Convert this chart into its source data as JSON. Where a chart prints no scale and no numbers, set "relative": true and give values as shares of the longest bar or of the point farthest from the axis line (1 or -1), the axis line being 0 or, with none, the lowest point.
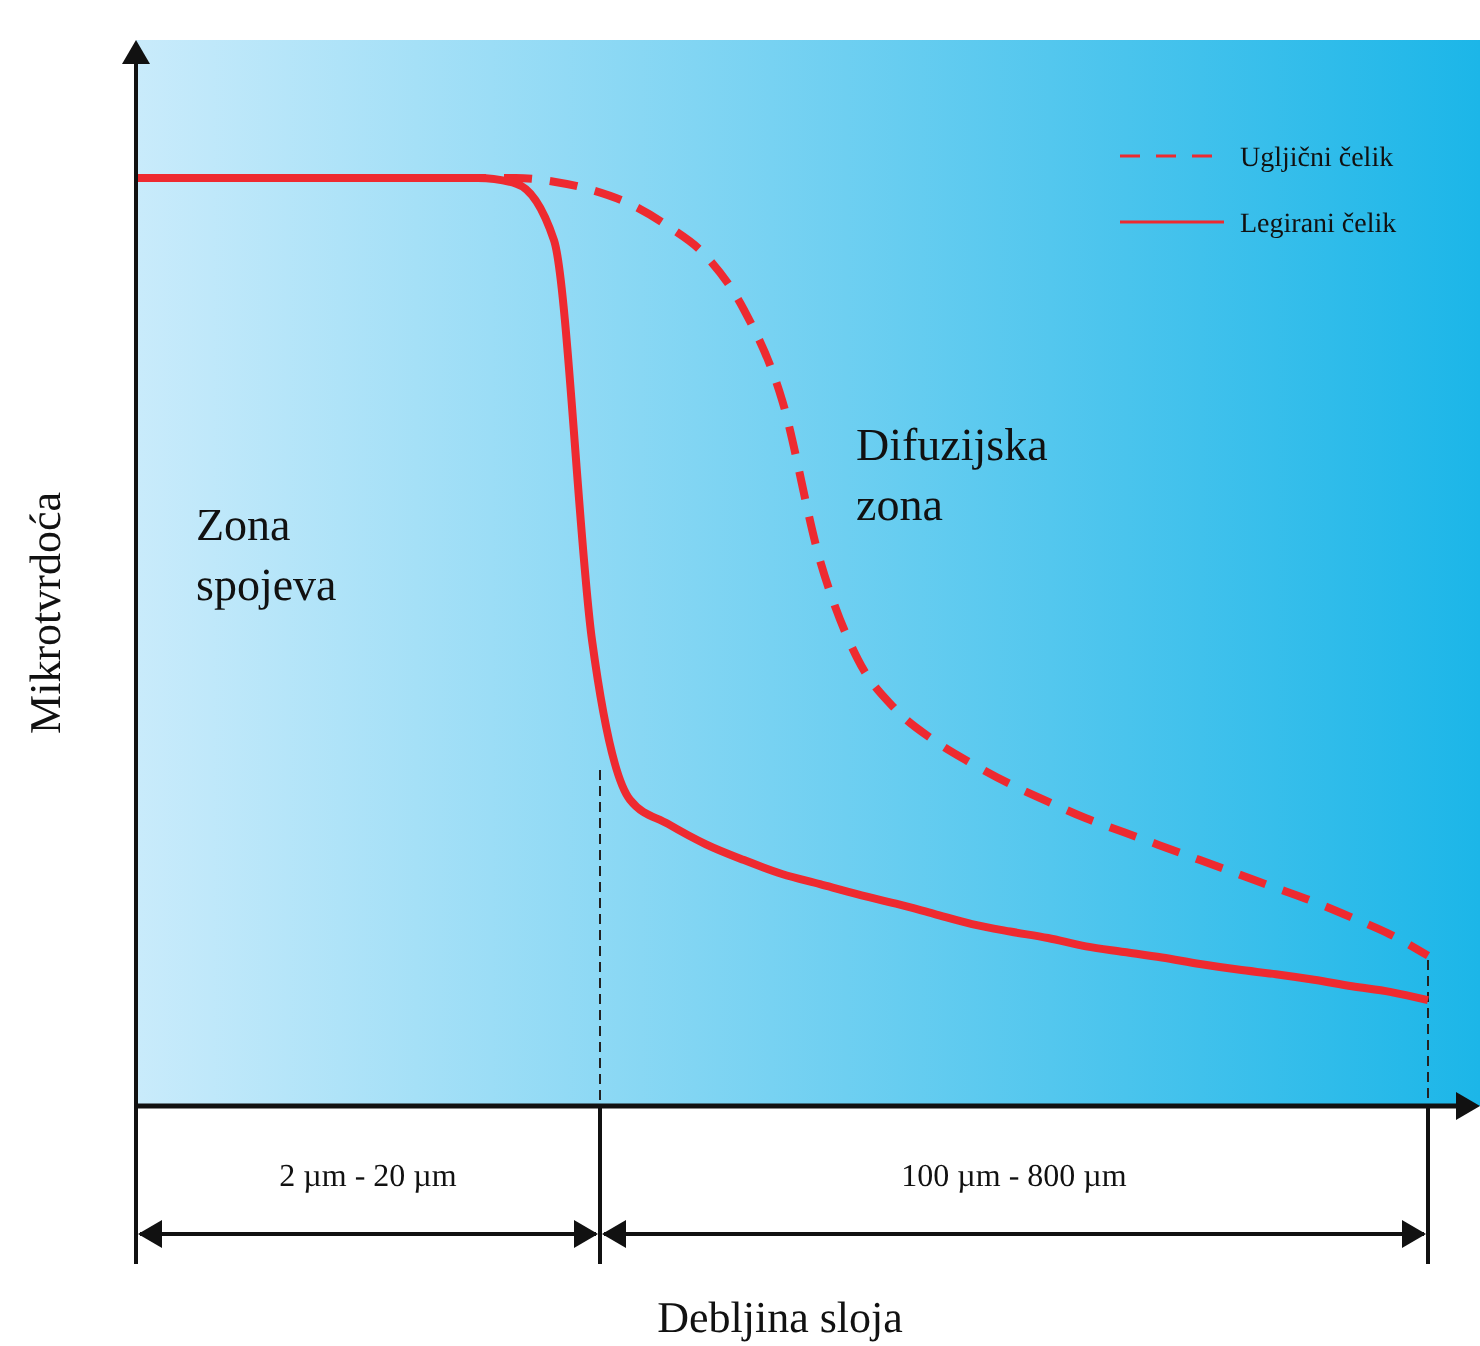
{
  "chart_data": {
    "type": "line",
    "relative": true,
    "xlabel": "Debljina sloja",
    "ylabel": "Mikrotvrdoća",
    "legend": "top right",
    "grid": false,
    "marker": "none",
    "categories": [
      null,
      null,
      null,
      null,
      null,
      null,
      null,
      null,
      null,
      null,
      null,
      null,
      null,
      null,
      null,
      null,
      null,
      null,
      null,
      null,
      null,
      null,
      null,
      null,
      null,
      null,
      null,
      null,
      null,
      null,
      null,
      null,
      null,
      null,
      null
    ],
    "series": [
      {
        "name": "Ugljični čelik",
        "color": "#ee2a30",
        "line_style": "dashed",
        "values": [
          1,
          1,
          1,
          1,
          1,
          1,
          1,
          1,
          1,
          1,
          1,
          0.996,
          0.987,
          0.972,
          0.948,
          0.916,
          0.858,
          0.761,
          0.588,
          0.481,
          0.427,
          0.394,
          0.369,
          0.347,
          0.328,
          0.31,
          0.295,
          0.28,
          0.265,
          0.25,
          0.235,
          0.22,
          0.203,
          0.185,
          0.162
        ]
      },
      {
        "name": "Legirani čelik",
        "color": "#ee2a30",
        "line_style": "solid",
        "values": [
          1,
          1,
          1,
          1,
          1,
          1,
          1,
          1,
          1,
          1,
          0.994,
          0.933,
          0.502,
          0.33,
          0.304,
          0.282,
          0.265,
          0.25,
          0.239,
          0.228,
          0.218,
          0.207,
          0.196,
          0.188,
          0.181,
          0.172,
          0.166,
          0.16,
          0.153,
          0.147,
          0.142,
          0.136,
          0.129,
          0.123,
          0.114
        ]
      }
    ],
    "annotations": [
      "Zona\nspojeva",
      "Difuzijska\nzona",
      "2 µm - 20 µm",
      "100 µm - 800 µm"
    ]
  }
}
